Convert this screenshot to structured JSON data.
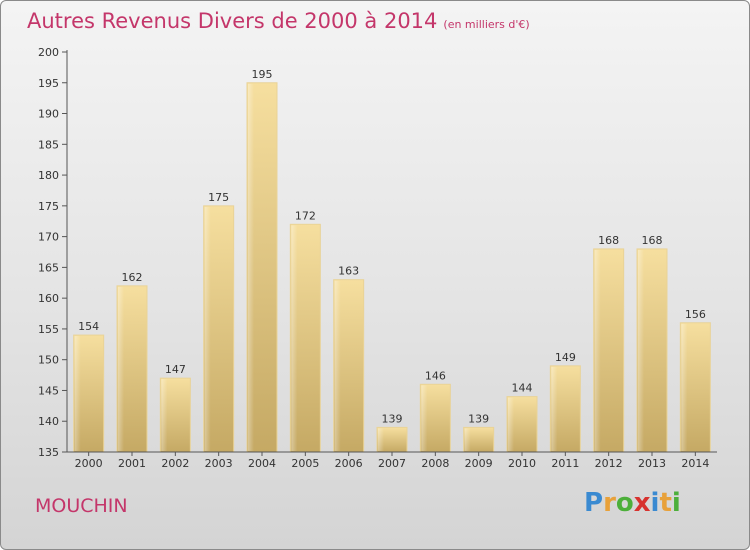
{
  "header": {
    "title": "Autres Revenus Divers de 2000 à 2014",
    "unit": "(en milliers d'€)"
  },
  "footer": {
    "commune": "MOUCHIN",
    "logo_letters": [
      "P",
      "r",
      "o",
      "x",
      "i",
      "t",
      "i"
    ],
    "logo_colors": [
      "#3a8ad1",
      "#e8a13a",
      "#4caf3a",
      "#d7322e",
      "#3a8ad1",
      "#e8a13a",
      "#4caf3a"
    ]
  },
  "colors": {
    "title": "#c4366a",
    "bar_light": "#f5dd9b",
    "bar_dark": "#c8ac66",
    "axis": "#333333"
  },
  "chart_data": {
    "type": "bar",
    "title": "Autres Revenus Divers de 2000 à 2014",
    "subtitle": "(en milliers d'€)",
    "xlabel": "",
    "ylabel": "",
    "categories": [
      "2000",
      "2001",
      "2002",
      "2003",
      "2004",
      "2005",
      "2006",
      "2007",
      "2008",
      "2009",
      "2010",
      "2011",
      "2012",
      "2013",
      "2014"
    ],
    "values": [
      154,
      162,
      147,
      175,
      195,
      172,
      163,
      139,
      146,
      139,
      144,
      149,
      168,
      168,
      156
    ],
    "ylim": [
      135,
      200
    ],
    "yticks": [
      135,
      140,
      145,
      150,
      155,
      160,
      165,
      170,
      175,
      180,
      185,
      190,
      195,
      200
    ],
    "grid": false,
    "data_labels": true
  }
}
